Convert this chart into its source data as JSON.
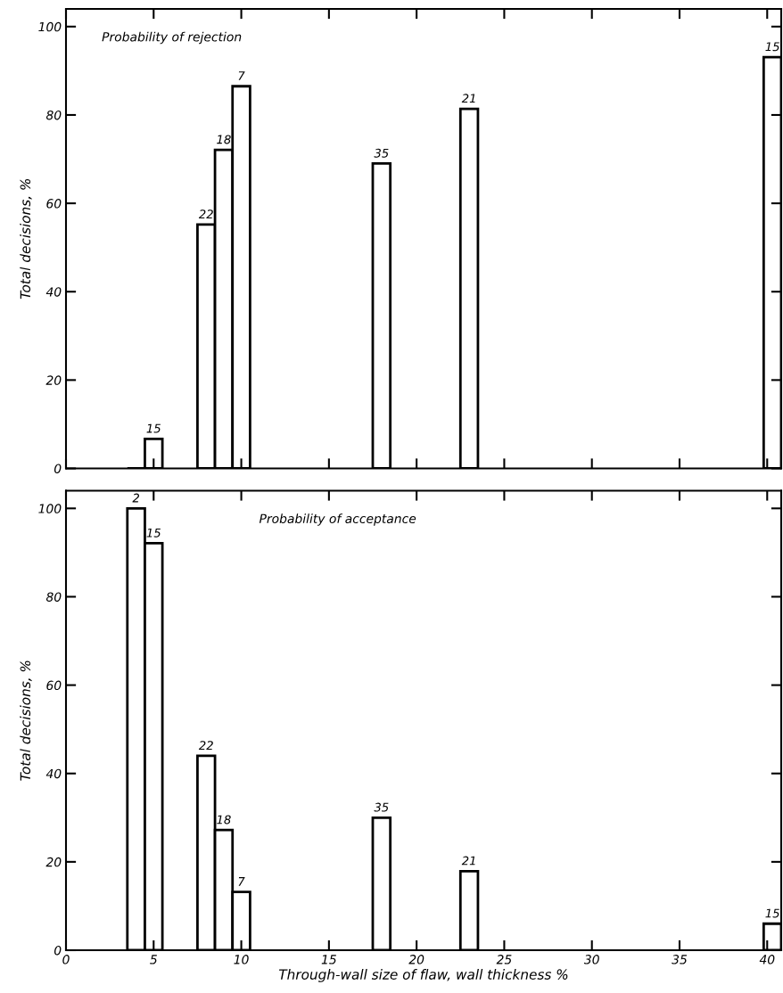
{
  "chart_data": [
    {
      "type": "bar",
      "title": "Probability of rejection",
      "ylabel": "Total decisions, %",
      "x": [
        4,
        5,
        8,
        9,
        10,
        18,
        23,
        40.3
      ],
      "values": [
        0,
        6.7,
        55.2,
        72.1,
        86.5,
        69,
        81.4,
        93.1
      ],
      "colors": [
        "#000000",
        "#ffffff",
        "#ffffff",
        "#ffffff",
        "#ffffff",
        "#ffffff",
        "#ffffff",
        "#ffffff"
      ],
      "xlim": [
        0,
        40.8
      ],
      "ylim": [
        0,
        104
      ],
      "xticks": [
        0,
        5,
        10,
        15,
        20,
        25,
        30,
        35,
        40
      ],
      "yticks": [
        0,
        20,
        40,
        60,
        80,
        100
      ],
      "tick_labels": "y",
      "grid": false,
      "legend": false,
      "annotations": [
        {
          "text": "15",
          "x": 5,
          "y": 6.7
        },
        {
          "text": "22",
          "x": 8,
          "y": 55.2
        },
        {
          "text": "18",
          "x": 9,
          "y": 72.1
        },
        {
          "text": "7",
          "x": 10,
          "y": 86.5
        },
        {
          "text": "35",
          "x": 18,
          "y": 69
        },
        {
          "text": "21",
          "x": 23,
          "y": 81.4
        },
        {
          "text": "15",
          "x": 40.3,
          "y": 93.1
        }
      ]
    },
    {
      "type": "bar",
      "title": "Probability of acceptance",
      "ylabel": "Total decisions, %",
      "xlabel": "Through-wall size of flaw, wall thickness %",
      "x": [
        4,
        5,
        8,
        9,
        10,
        18,
        23,
        40.3
      ],
      "values": [
        100,
        92.1,
        44,
        27.2,
        13.2,
        30,
        17.9,
        6
      ],
      "color": "#ffffff",
      "xlim": [
        0,
        40.8
      ],
      "ylim": [
        0,
        104
      ],
      "xticks": [
        0,
        5,
        10,
        15,
        20,
        25,
        30,
        35,
        40
      ],
      "yticks": [
        0,
        20,
        40,
        60,
        80,
        100
      ],
      "grid": false,
      "legend": false,
      "annotations": [
        {
          "text": "2",
          "x": 4,
          "y": 100
        },
        {
          "text": "15",
          "x": 5,
          "y": 92.1
        },
        {
          "text": "22",
          "x": 8,
          "y": 44
        },
        {
          "text": "18",
          "x": 9,
          "y": 27.2
        },
        {
          "text": "7",
          "x": 10,
          "y": 13.2
        },
        {
          "text": "35",
          "x": 18,
          "y": 30
        },
        {
          "text": "21",
          "x": 23,
          "y": 17.9
        },
        {
          "text": "15",
          "x": 40.3,
          "y": 6
        }
      ]
    }
  ]
}
